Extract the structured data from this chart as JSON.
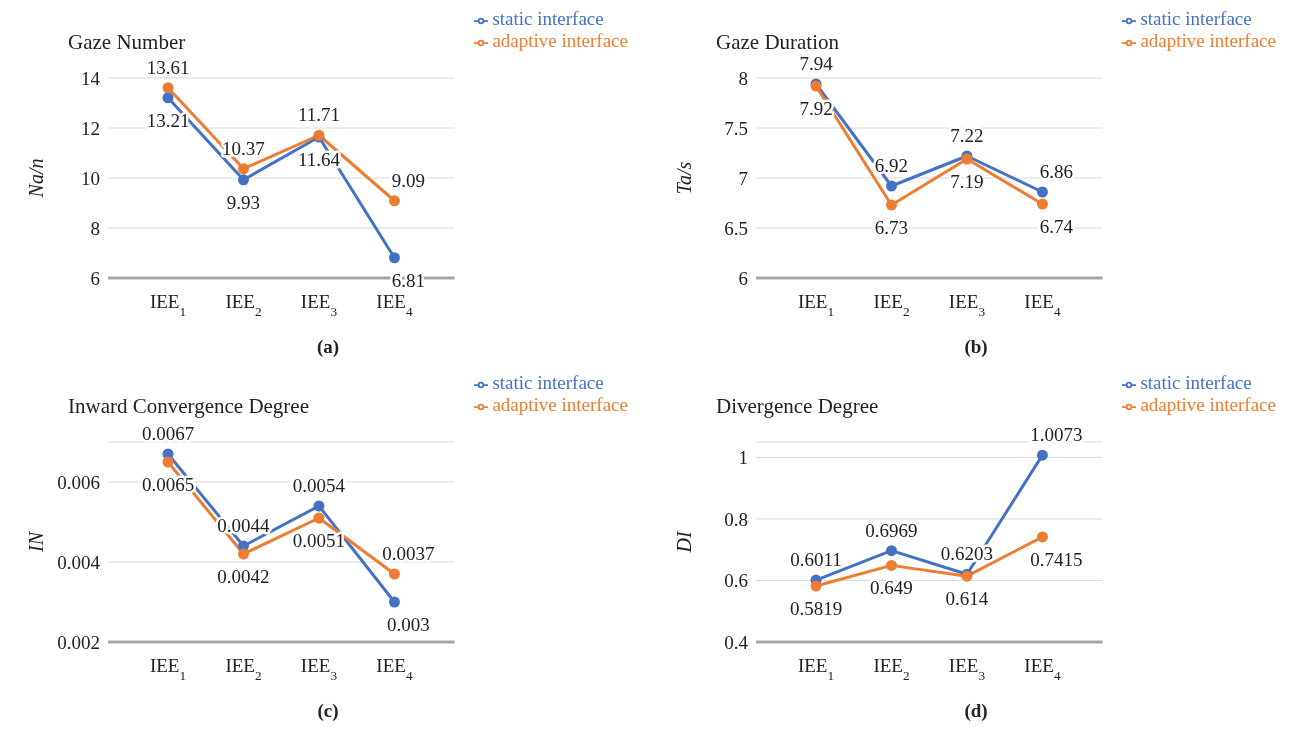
{
  "chart_data": [
    {
      "type": "line",
      "title": "Gaze Number",
      "ylabel": "Na/n",
      "categories": [
        "IEE$_{1}$",
        "IEE$_{2}$",
        "IEE$_{3}$",
        "IEE$_{4}$"
      ],
      "series": [
        {
          "name": "static interface",
          "color": "#4472c4",
          "values": [
            13.21,
            9.93,
            11.64,
            6.81
          ]
        },
        {
          "name": "adaptive interface",
          "color": "#ed7d31",
          "values": [
            13.61,
            10.37,
            11.71,
            9.09
          ]
        }
      ],
      "ylim": [
        6,
        14
      ],
      "yticks": [
        6,
        8,
        10,
        12,
        14
      ],
      "grid": "y",
      "legend": "top right",
      "marker": "circle",
      "data_labels": true,
      "annotations": [
        "(a)"
      ]
    },
    {
      "type": "line",
      "title": "Gaze Duration",
      "ylabel": "Ta/s",
      "categories": [
        "IEE$_{1}$",
        "IEE$_{2}$",
        "IEE$_{3}$",
        "IEE$_{4}$"
      ],
      "series": [
        {
          "name": "static interface",
          "color": "#4472c4",
          "values": [
            7.94,
            6.92,
            7.22,
            6.86
          ]
        },
        {
          "name": "adaptive interface",
          "color": "#ed7d31",
          "values": [
            7.92,
            6.73,
            7.19,
            6.74
          ]
        }
      ],
      "ylim": [
        6,
        8
      ],
      "yticks": [
        6,
        6.5,
        7,
        7.5,
        8
      ],
      "grid": "y",
      "legend": "top right",
      "marker": "circle",
      "data_labels": true,
      "annotations": [
        "(b)"
      ]
    },
    {
      "type": "line",
      "title": "Inward Convergence Degree",
      "ylabel": "IN",
      "categories": [
        "IEE$_{1}$",
        "IEE$_{2}$",
        "IEE$_{3}$",
        "IEE$_{4}$"
      ],
      "series": [
        {
          "name": "static interface",
          "color": "#4472c4",
          "values": [
            0.0067,
            0.0044,
            0.0054,
            0.003
          ]
        },
        {
          "name": "adaptive interface",
          "color": "#ed7d31",
          "values": [
            0.0065,
            0.0042,
            0.0051,
            0.0037
          ]
        }
      ],
      "ylim": [
        0.002,
        0.007
      ],
      "yticks": [
        0.002,
        0.004,
        0.006
      ],
      "grid": "y",
      "legend": "top right",
      "marker": "circle",
      "data_labels": true,
      "annotations": [
        "(c)"
      ]
    },
    {
      "type": "line",
      "title": "Divergence Degree",
      "ylabel": "DI",
      "categories": [
        "IEE$_{1}$",
        "IEE$_{2}$",
        "IEE$_{3}$",
        "IEE$_{4}$"
      ],
      "series": [
        {
          "name": "static interface",
          "color": "#4472c4",
          "values": [
            0.6011,
            0.6969,
            0.6203,
            1.0073
          ]
        },
        {
          "name": "adaptive interface",
          "color": "#ed7d31",
          "values": [
            0.5819,
            0.649,
            0.614,
            0.7415
          ]
        }
      ],
      "ylim": [
        0.4,
        1.05
      ],
      "yticks": [
        0.4,
        0.6,
        0.8,
        1
      ],
      "grid": "y",
      "legend": "top right",
      "marker": "circle",
      "data_labels": true,
      "annotations": [
        "(d)"
      ]
    }
  ]
}
